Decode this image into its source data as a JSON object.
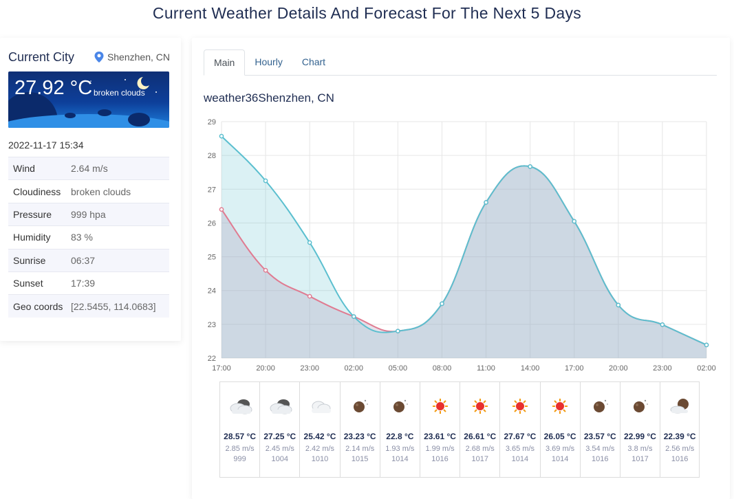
{
  "page": {
    "title": "Current Weather Details And Forecast For The Next 5 Days"
  },
  "current": {
    "label": "Current City",
    "city": "Shenzhen, CN",
    "temp": "27.92 °C",
    "description": "broken clouds",
    "timestamp": "2022-11-17 15:34",
    "details": [
      {
        "key": "Wind",
        "value": "2.64 m/s"
      },
      {
        "key": "Cloudiness",
        "value": "broken clouds"
      },
      {
        "key": "Pressure",
        "value": "999 hpa"
      },
      {
        "key": "Humidity",
        "value": "83 %"
      },
      {
        "key": "Sunrise",
        "value": "06:37"
      },
      {
        "key": "Sunset",
        "value": "17:39"
      },
      {
        "key": "Geo coords",
        "value": "[22.5455, 114.0683]"
      }
    ]
  },
  "tabs": [
    {
      "label": "Main",
      "active": true
    },
    {
      "label": "Hourly",
      "active": false
    },
    {
      "label": "Chart",
      "active": false
    }
  ],
  "chart_title": "weather36Shenzhen, CN",
  "chart_data": {
    "type": "area",
    "x": [
      "17:00",
      "20:00",
      "23:00",
      "02:00",
      "05:00",
      "08:00",
      "11:00",
      "14:00",
      "17:00",
      "20:00",
      "23:00",
      "02:00"
    ],
    "series": [
      {
        "values": [
          28.57,
          27.25,
          25.42,
          23.23,
          22.8,
          23.61,
          26.61,
          27.67,
          26.05,
          23.57,
          22.99,
          22.39
        ],
        "color": "#5bbfcf"
      },
      {
        "values": [
          26.4,
          24.6,
          23.83,
          23.23,
          22.8,
          23.61,
          26.61,
          27.67,
          26.05,
          23.57,
          22.99,
          22.39
        ],
        "color": "#e07b91"
      }
    ],
    "ylim": [
      22,
      29
    ],
    "yticks": [
      "22",
      "23",
      "24",
      "25",
      "26",
      "27",
      "28",
      "29"
    ],
    "grid": true
  },
  "forecast": [
    {
      "icon": "broken-clouds-icon",
      "temp": "28.57 °C",
      "wind": "2.85 m/s",
      "pressure": "999"
    },
    {
      "icon": "broken-clouds-icon",
      "temp": "27.25 °C",
      "wind": "2.45 m/s",
      "pressure": "1004"
    },
    {
      "icon": "few-clouds-icon",
      "temp": "25.42 °C",
      "wind": "2.42 m/s",
      "pressure": "1010"
    },
    {
      "icon": "night-clear-icon",
      "temp": "23.23 °C",
      "wind": "2.14 m/s",
      "pressure": "1015"
    },
    {
      "icon": "night-clear-icon",
      "temp": "22.8 °C",
      "wind": "1.93 m/s",
      "pressure": "1014"
    },
    {
      "icon": "sunny-icon",
      "temp": "23.61 °C",
      "wind": "1.99 m/s",
      "pressure": "1016"
    },
    {
      "icon": "sunny-icon",
      "temp": "26.61 °C",
      "wind": "2.68 m/s",
      "pressure": "1017"
    },
    {
      "icon": "sunny-icon",
      "temp": "27.67 °C",
      "wind": "3.65 m/s",
      "pressure": "1014"
    },
    {
      "icon": "sunny-icon",
      "temp": "26.05 °C",
      "wind": "3.69 m/s",
      "pressure": "1014"
    },
    {
      "icon": "night-clear-icon",
      "temp": "23.57 °C",
      "wind": "3.54 m/s",
      "pressure": "1016"
    },
    {
      "icon": "night-clear-icon",
      "temp": "22.99 °C",
      "wind": "3.8 m/s",
      "pressure": "1017"
    },
    {
      "icon": "night-cloudy-icon",
      "temp": "22.39 °C",
      "wind": "2.56 m/s",
      "pressure": "1016"
    }
  ]
}
